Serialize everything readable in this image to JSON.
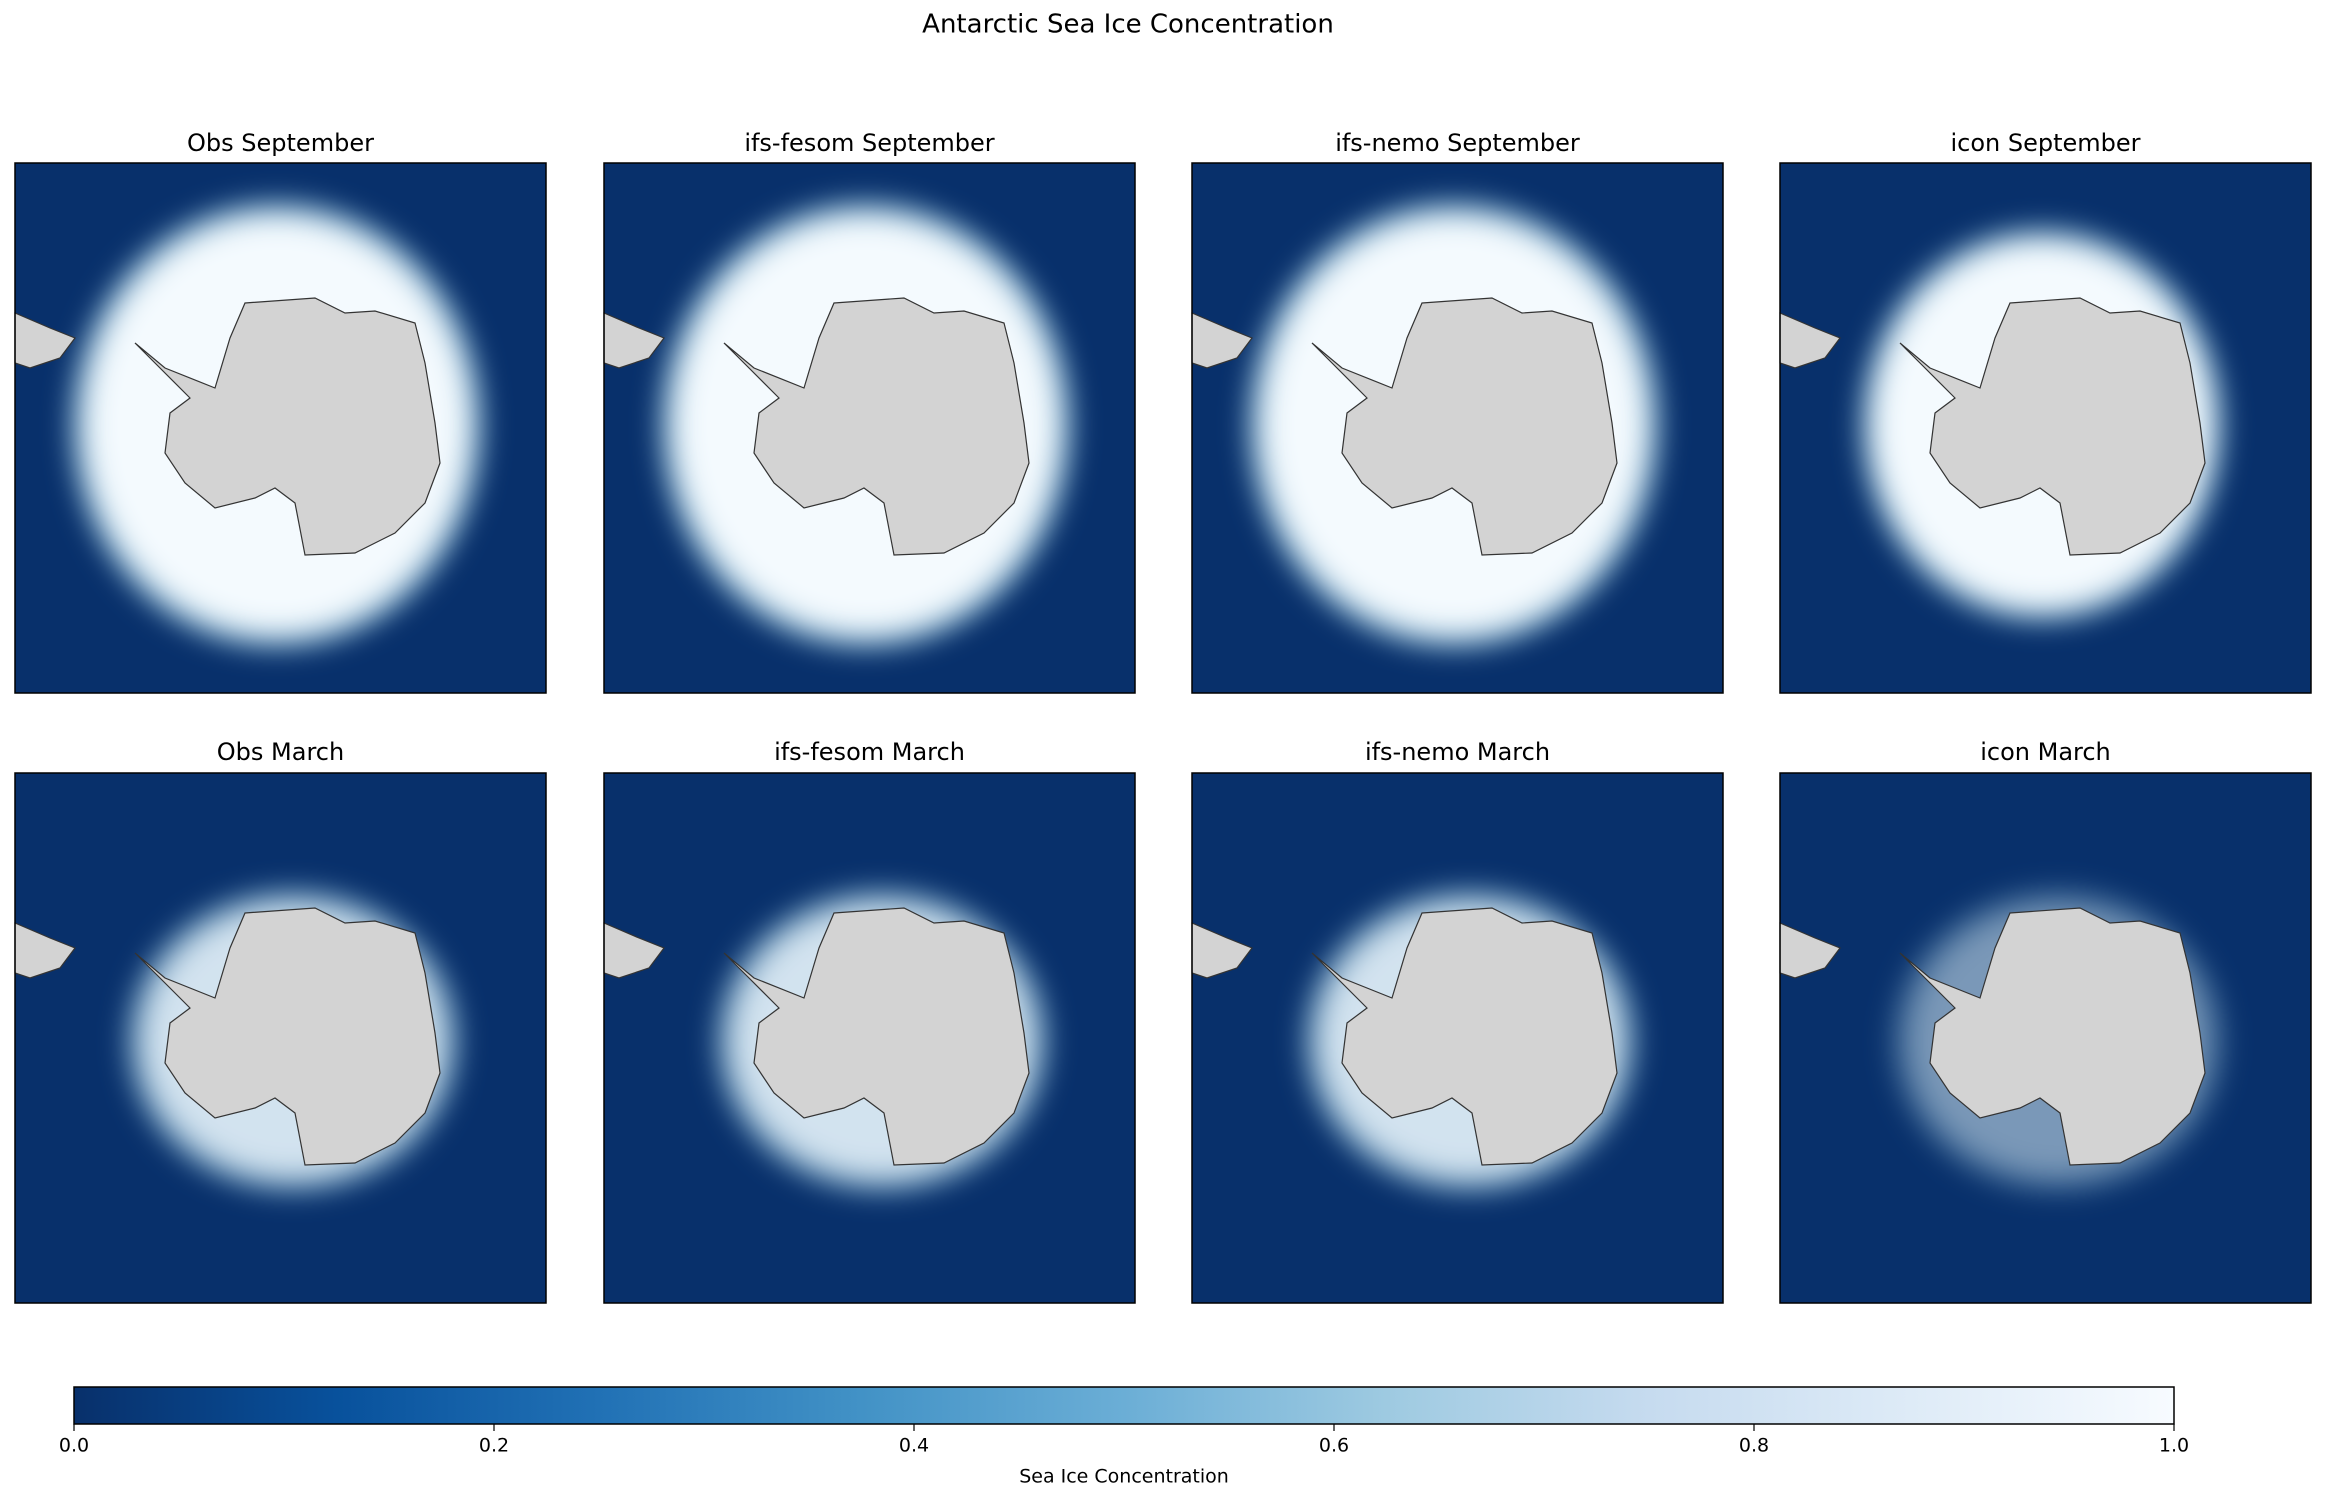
{
  "chart_data": {
    "type": "map",
    "title": "Antarctic Sea Ice Concentration",
    "panels": [
      "Obs September",
      "ifs-fesom September",
      "ifs-nemo September",
      "icon September",
      "Obs March",
      "ifs-fesom March",
      "ifs-nemo March",
      "icon March"
    ],
    "colorbar": {
      "label": "Sea Ice Concentration",
      "lim": [
        0,
        1
      ],
      "ticks": [
        {
          "value": 0,
          "label": "0.0"
        },
        0.2,
        0.4,
        0.6,
        0.8,
        {
          "value": 1,
          "label": "1.0"
        }
      ],
      "colormap": [
        "#08306b",
        "#08519c",
        "#2171b5",
        "#4292c6",
        "#6baed6",
        "#9ecae1",
        "#c6dbef",
        "#deebf7",
        "#f7fbff"
      ]
    }
  }
}
